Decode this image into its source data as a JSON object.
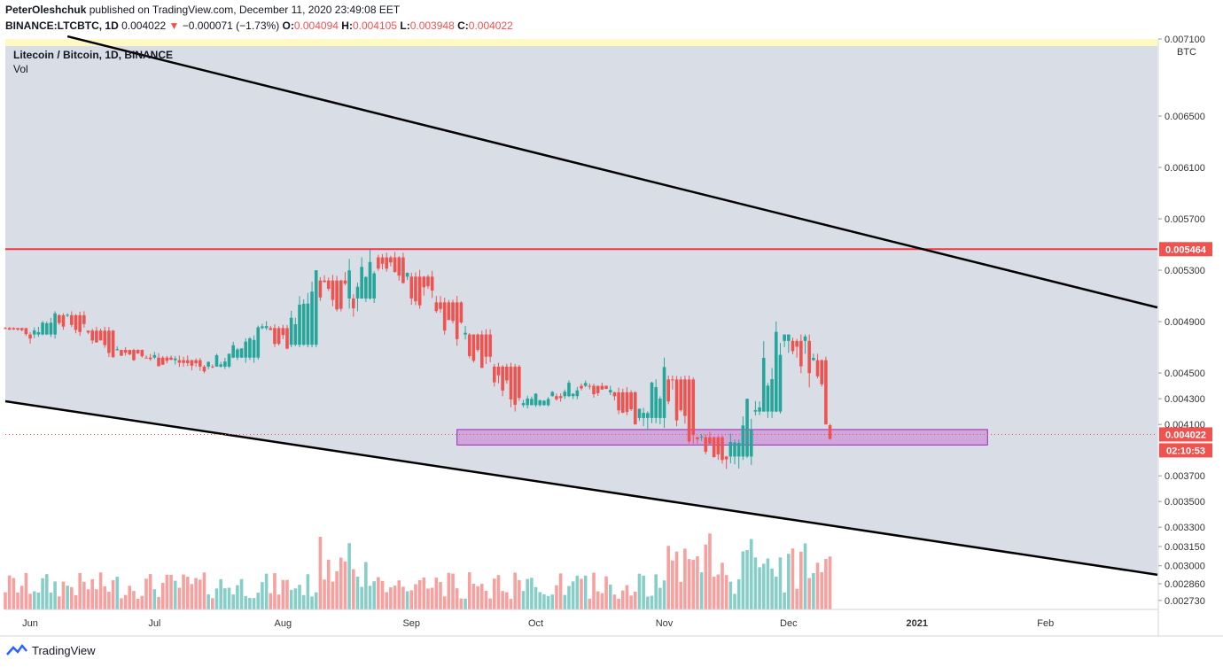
{
  "header": {
    "author": "PeterOleshchuk",
    "published_text": "published on TradingView.com, December 11, 2020 23:49:08 EET",
    "symbol": "BINANCE:LTCBTC, 1D",
    "last": "0.004022",
    "change": "−0.000071 (−1.73%)",
    "o_label": "O:",
    "o": "0.004094",
    "h_label": "H:",
    "h": "0.004105",
    "l_label": "L:",
    "l": "0.003948",
    "c_label": "C:",
    "c": "0.004022"
  },
  "legend": {
    "title": "Litecoin / Bitcoin, 1D, BINANCE",
    "vol": "Vol"
  },
  "branding": {
    "name": "TradingView"
  },
  "colors": {
    "up": "#26a69a",
    "down": "#ef5350",
    "resistance": "#f23645",
    "zone": "#ce93d8",
    "channel": "#000000",
    "bg": "#d9dde6"
  },
  "chart_data": {
    "type": "candlestick",
    "currency": "BTC",
    "ylim": [
      0.00266,
      0.0071
    ],
    "y_ticks": [
      0.0071,
      0.0065,
      0.0061,
      0.0057,
      0.0053,
      0.0049,
      0.0045,
      0.0043,
      0.0041,
      0.0037,
      0.0035,
      0.0033,
      0.00315,
      0.003,
      0.00286,
      0.00273
    ],
    "y_tick_labels": [
      "0.007100",
      "0.006500",
      "0.006100",
      "0.005700",
      "0.005300",
      "0.004900",
      "0.004500",
      "0.004300",
      "0.004100",
      "0.003700",
      "0.003500",
      "0.003300",
      "0.003150",
      "0.003000",
      "0.002860",
      "0.002730"
    ],
    "x_ticks": [
      "Jun",
      "Jul",
      "Aug",
      "Sep",
      "Oct",
      "Nov",
      "Dec",
      "2021",
      "Feb"
    ],
    "x_range": [
      "2020-05-26",
      "2021-02-28"
    ],
    "resistance_level": 0.005464,
    "resistance_label": "0.005464",
    "current_price": 0.004022,
    "current_price_label": "0.004022",
    "countdown_label": "02:10:53",
    "support_zone": {
      "from": "2020-09-12",
      "to": "2021-01-18",
      "low": 0.00394,
      "high": 0.00406
    },
    "channel_upper": [
      [
        "2020-06-10",
        0.00712
      ],
      [
        "2021-02-28",
        0.00501
      ]
    ],
    "channel_lower": [
      [
        "2020-05-26",
        0.00428
      ],
      [
        "2021-02-28",
        0.00293
      ]
    ],
    "ohlc": [
      [
        "2020-05-26",
        0.00485,
        0.00488,
        0.00478,
        0.00482
      ],
      [
        "2020-06-01",
        0.0048,
        0.005,
        0.00472,
        0.00495
      ],
      [
        "2020-06-08",
        0.00495,
        0.00502,
        0.00478,
        0.00483
      ],
      [
        "2020-06-15",
        0.00483,
        0.00486,
        0.00462,
        0.00468
      ],
      [
        "2020-06-22",
        0.00468,
        0.00475,
        0.00458,
        0.00462
      ],
      [
        "2020-06-29",
        0.00462,
        0.00478,
        0.00452,
        0.0046
      ],
      [
        "2020-07-06",
        0.0046,
        0.0047,
        0.00445,
        0.00455
      ],
      [
        "2020-07-13",
        0.00455,
        0.00465,
        0.00444,
        0.00462
      ],
      [
        "2020-07-20",
        0.00462,
        0.0049,
        0.00458,
        0.00485
      ],
      [
        "2020-07-27",
        0.00485,
        0.00492,
        0.00465,
        0.00472
      ],
      [
        "2020-08-03",
        0.00472,
        0.0053,
        0.0047,
        0.00522
      ],
      [
        "2020-08-10",
        0.00522,
        0.00548,
        0.00498,
        0.00508
      ],
      [
        "2020-08-17",
        0.00508,
        0.0056,
        0.0049,
        0.0054
      ],
      [
        "2020-08-24",
        0.0054,
        0.00548,
        0.00515,
        0.00525
      ],
      [
        "2020-08-31",
        0.00525,
        0.00545,
        0.005,
        0.00505
      ],
      [
        "2020-09-07",
        0.00505,
        0.0051,
        0.00455,
        0.0048
      ],
      [
        "2020-09-14",
        0.0048,
        0.0049,
        0.0045,
        0.00455
      ],
      [
        "2020-09-21",
        0.00455,
        0.00458,
        0.00415,
        0.00425
      ],
      [
        "2020-09-28",
        0.00425,
        0.0044,
        0.0042,
        0.00432
      ],
      [
        "2020-10-05",
        0.00432,
        0.00448,
        0.00425,
        0.0044
      ],
      [
        "2020-10-12",
        0.0044,
        0.00448,
        0.0043,
        0.00435
      ],
      [
        "2020-10-19",
        0.00435,
        0.0044,
        0.0041,
        0.00415
      ],
      [
        "2020-10-26",
        0.00415,
        0.00462,
        0.00398,
        0.00445
      ],
      [
        "2020-11-02",
        0.00445,
        0.00448,
        0.00395,
        0.004
      ],
      [
        "2020-11-09",
        0.004,
        0.00405,
        0.00375,
        0.00385
      ],
      [
        "2020-11-16",
        0.00385,
        0.0043,
        0.00365,
        0.0042
      ],
      [
        "2020-11-23",
        0.0042,
        0.00505,
        0.00415,
        0.00475
      ],
      [
        "2020-11-30",
        0.00475,
        0.0048,
        0.00405,
        0.0046
      ],
      [
        "2020-12-07",
        0.0046,
        0.00465,
        0.0041,
        0.0042
      ],
      [
        "2020-12-11",
        0.004094,
        0.004105,
        0.003948,
        0.004022
      ]
    ],
    "volume_note": "volume bars in lower pane, peak around 2020-12-01"
  }
}
